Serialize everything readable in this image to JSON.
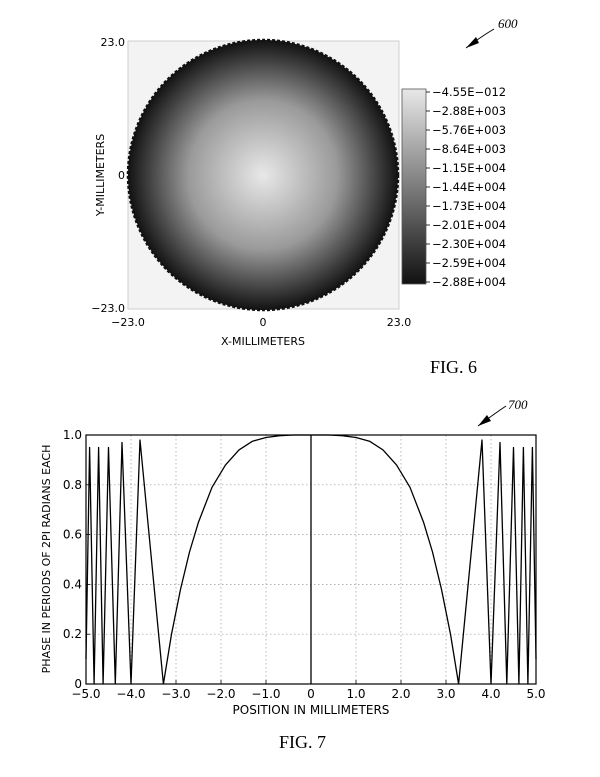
{
  "figures": {
    "fig6": {
      "caption": "FIG. 6",
      "ref": "600"
    },
    "fig7": {
      "caption": "FIG. 7",
      "ref": "700"
    }
  },
  "chart_data": [
    {
      "type": "heatmap",
      "shape": "disc",
      "xlabel": "X-MILLIMETERS",
      "ylabel": "Y-MILLIMETERS",
      "x_ticks": [
        "−23.0",
        "0",
        "23.0"
      ],
      "y_ticks": [
        "23.0",
        "0",
        "−23.0"
      ],
      "xlim": [
        -23.0,
        23.0
      ],
      "ylim": [
        -23.0,
        23.0
      ],
      "radius": 23.0,
      "center_value": -4.55e-12,
      "edge_value": -28800,
      "colorbar": {
        "colors": [
          "#e8e8e8",
          "#111111"
        ],
        "labels": [
          "−4.55E−012",
          "−2.88E+003",
          "−5.76E+003",
          "−8.64E+003",
          "−1.15E+004",
          "−1.44E+004",
          "−1.73E+004",
          "−2.01E+004",
          "−2.30E+004",
          "−2.59E+004",
          "−2.88E+004"
        ]
      }
    },
    {
      "type": "line",
      "xlabel": "POSITION IN MILLIMETERS",
      "ylabel": "PHASE IN PERIODS OF 2PI RADIANS EACH",
      "xlim": [
        -5.0,
        5.0
      ],
      "ylim": [
        0,
        1.0
      ],
      "grid": true,
      "x_ticks": [
        "−5.0",
        "−4.0",
        "−3.0",
        "−2.0",
        "−1.0",
        "0",
        "1.0",
        "2.0",
        "3.0",
        "4.0",
        "5.0"
      ],
      "y_ticks": [
        "0",
        "0.2",
        "0.4",
        "0.6",
        "0.8",
        "1.0"
      ],
      "x_tick_values": [
        -5,
        -4,
        -3,
        -2,
        -1,
        0,
        1,
        2,
        3,
        4,
        5
      ],
      "y_tick_values": [
        0,
        0.2,
        0.4,
        0.6,
        0.8,
        1.0
      ],
      "series": [
        {
          "x": [
            -5.0,
            -4.92,
            -4.82,
            -4.72,
            -4.62,
            -4.5,
            -4.35,
            -4.2,
            -4.0,
            -3.8,
            -3.28
          ],
          "y": [
            0.1,
            0.95,
            0,
            0.95,
            0,
            0.95,
            0,
            0.97,
            0,
            0.98,
            0
          ]
        },
        {
          "x": [
            -3.28,
            -3.1,
            -2.9,
            -2.7,
            -2.5,
            -2.2,
            -1.9,
            -1.6,
            -1.3,
            -1.0,
            -0.7,
            -0.4,
            0
          ],
          "y": [
            0,
            0.2,
            0.38,
            0.53,
            0.65,
            0.79,
            0.88,
            0.94,
            0.975,
            0.99,
            0.997,
            1.0,
            1.0
          ]
        },
        {
          "x": [
            0,
            0.4,
            0.7,
            1.0,
            1.3,
            1.6,
            1.9,
            2.2,
            2.5,
            2.7,
            2.9,
            3.1,
            3.28
          ],
          "y": [
            1.0,
            1.0,
            0.997,
            0.99,
            0.975,
            0.94,
            0.88,
            0.79,
            0.65,
            0.53,
            0.38,
            0.2,
            0
          ]
        },
        {
          "x": [
            3.28,
            3.8,
            4.0,
            4.2,
            4.35,
            4.5,
            4.62,
            4.72,
            4.82,
            4.92,
            5.0
          ],
          "y": [
            0,
            0.98,
            0,
            0.97,
            0,
            0.95,
            0,
            0.95,
            0,
            0.95,
            0.1
          ]
        },
        {
          "x": [
            0,
            0
          ],
          "y": [
            0,
            1.0
          ]
        }
      ]
    }
  ]
}
